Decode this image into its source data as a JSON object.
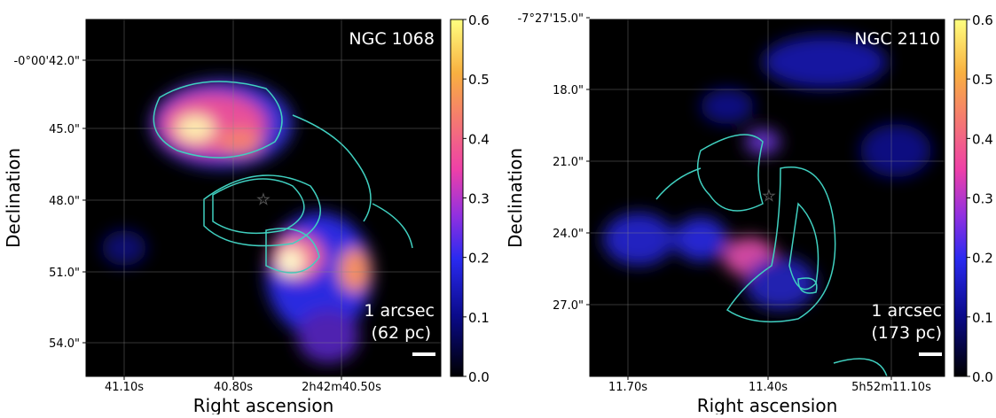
{
  "chart_data": [
    {
      "type": "image",
      "xlabel": "Right ascension",
      "ylabel": "Declination",
      "xticks": [
        "41.10s",
        "40.80s",
        "2h42m40.50s"
      ],
      "yticks": [
        "-0°00'42.0\"",
        "45.0\"",
        "48.0\"",
        "51.0\"",
        "54.0\""
      ],
      "annotations": [
        "NGC 1068",
        "1 arcsec",
        "(62 pc)"
      ],
      "colorbar": {
        "lim": [
          0,
          0.6
        ],
        "ticks": [
          {
            "value": 0,
            "label": "0.0"
          },
          {
            "value": 0.1,
            "label": "0.1"
          },
          {
            "value": 0.2,
            "label": "0.2"
          },
          {
            "value": 0.3,
            "label": "0.3"
          },
          {
            "value": 0.4,
            "label": "0.4"
          },
          {
            "value": 0.5,
            "label": "0.5"
          },
          {
            "value": 0.6,
            "label": "0.6"
          }
        ]
      }
    },
    {
      "type": "image",
      "xlabel": "Right ascension",
      "ylabel": "Declination",
      "xticks": [
        "11.70s",
        "11.40s",
        "5h52m11.10s"
      ],
      "yticks": [
        "-7°27'15.0\"",
        "18.0\"",
        "21.0\"",
        "24.0\"",
        "27.0\""
      ],
      "annotations": [
        "NGC 2110",
        "1 arcsec",
        "(173 pc)"
      ],
      "colorbar": {
        "lim": [
          0,
          0.6
        ],
        "ticks": [
          {
            "value": 0,
            "label": "0.0"
          },
          {
            "value": 0.1,
            "label": "0.1"
          },
          {
            "value": 0.2,
            "label": "0.2"
          },
          {
            "value": 0.3,
            "label": "0.3"
          },
          {
            "value": 0.4,
            "label": "0.4"
          },
          {
            "value": 0.5,
            "label": "0.5"
          },
          {
            "value": 0.6,
            "label": "0.6"
          }
        ]
      }
    }
  ]
}
